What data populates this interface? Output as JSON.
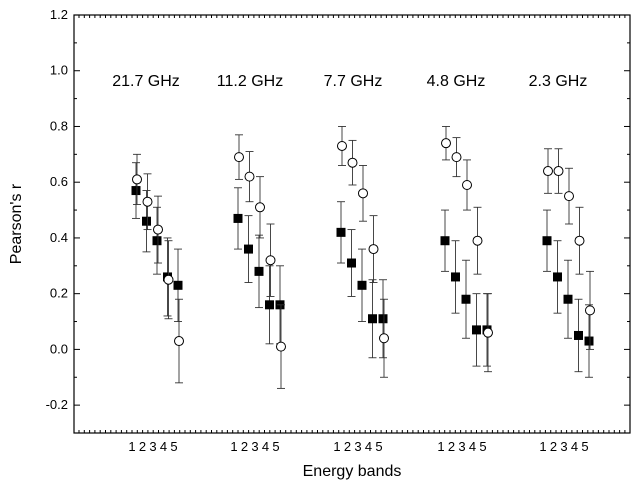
{
  "chart_data": {
    "type": "scatter",
    "xlabel": "Energy bands",
    "ylabel": "Pearson's r",
    "ylim": [
      -0.3,
      1.2
    ],
    "y_ticks": [
      "-0.2",
      "0.0",
      "0.2",
      "0.4",
      "0.6",
      "0.8",
      "1.0",
      "1.2"
    ],
    "band_labels": [
      "1",
      "2",
      "3",
      "4",
      "5"
    ],
    "groups": [
      {
        "label": "21.7 GHz",
        "filled_squares": [
          {
            "band": 1,
            "r": 0.57,
            "err": 0.1
          },
          {
            "band": 2,
            "r": 0.46,
            "err": 0.11
          },
          {
            "band": 3,
            "r": 0.39,
            "err": 0.12
          },
          {
            "band": 4,
            "r": 0.26,
            "err": 0.14
          },
          {
            "band": 5,
            "r": 0.23,
            "err": 0.13
          }
        ],
        "open_circles": [
          {
            "band": 1,
            "r": 0.61,
            "err": 0.09
          },
          {
            "band": 2,
            "r": 0.53,
            "err": 0.1
          },
          {
            "band": 3,
            "r": 0.43,
            "err": 0.12
          },
          {
            "band": 4,
            "r": 0.25,
            "err": 0.14
          },
          {
            "band": 5,
            "r": 0.03,
            "err": 0.15
          }
        ]
      },
      {
        "label": "11.2 GHz",
        "filled_squares": [
          {
            "band": 1,
            "r": 0.47,
            "err": 0.11
          },
          {
            "band": 2,
            "r": 0.36,
            "err": 0.12
          },
          {
            "band": 3,
            "r": 0.28,
            "err": 0.13
          },
          {
            "band": 4,
            "r": 0.16,
            "err": 0.14
          },
          {
            "band": 5,
            "r": 0.16,
            "err": 0.14
          }
        ],
        "open_circles": [
          {
            "band": 1,
            "r": 0.69,
            "err": 0.08
          },
          {
            "band": 2,
            "r": 0.62,
            "err": 0.09
          },
          {
            "band": 3,
            "r": 0.51,
            "err": 0.11
          },
          {
            "band": 4,
            "r": 0.32,
            "err": 0.13
          },
          {
            "band": 5,
            "r": 0.01,
            "err": 0.15
          }
        ]
      },
      {
        "label": "7.7 GHz",
        "filled_squares": [
          {
            "band": 1,
            "r": 0.42,
            "err": 0.11
          },
          {
            "band": 2,
            "r": 0.31,
            "err": 0.12
          },
          {
            "band": 3,
            "r": 0.23,
            "err": 0.13
          },
          {
            "band": 4,
            "r": 0.11,
            "err": 0.14
          },
          {
            "band": 5,
            "r": 0.11,
            "err": 0.14
          }
        ],
        "open_circles": [
          {
            "band": 1,
            "r": 0.73,
            "err": 0.07
          },
          {
            "band": 2,
            "r": 0.67,
            "err": 0.08
          },
          {
            "band": 3,
            "r": 0.56,
            "err": 0.1
          },
          {
            "band": 4,
            "r": 0.36,
            "err": 0.12
          },
          {
            "band": 5,
            "r": 0.04,
            "err": 0.14
          }
        ]
      },
      {
        "label": "4.8 GHz",
        "filled_squares": [
          {
            "band": 1,
            "r": 0.39,
            "err": 0.11
          },
          {
            "band": 2,
            "r": 0.26,
            "err": 0.13
          },
          {
            "band": 3,
            "r": 0.18,
            "err": 0.14
          },
          {
            "band": 4,
            "r": 0.07,
            "err": 0.13
          },
          {
            "band": 5,
            "r": 0.07,
            "err": 0.13
          }
        ],
        "open_circles": [
          {
            "band": 1,
            "r": 0.74,
            "err": 0.06
          },
          {
            "band": 2,
            "r": 0.69,
            "err": 0.07
          },
          {
            "band": 3,
            "r": 0.59,
            "err": 0.09
          },
          {
            "band": 4,
            "r": 0.39,
            "err": 0.12
          },
          {
            "band": 5,
            "r": 0.06,
            "err": 0.14
          }
        ]
      },
      {
        "label": "2.3 GHz",
        "filled_squares": [
          {
            "band": 1,
            "r": 0.39,
            "err": 0.11
          },
          {
            "band": 2,
            "r": 0.26,
            "err": 0.13
          },
          {
            "band": 3,
            "r": 0.18,
            "err": 0.14
          },
          {
            "band": 4,
            "r": 0.05,
            "err": 0.13
          },
          {
            "band": 5,
            "r": 0.03,
            "err": 0.13
          }
        ],
        "open_circles": [
          {
            "band": 1,
            "r": 0.64,
            "err": 0.08
          },
          {
            "band": 2,
            "r": 0.64,
            "err": 0.08
          },
          {
            "band": 3,
            "r": 0.55,
            "err": 0.1
          },
          {
            "band": 4,
            "r": 0.39,
            "err": 0.12
          },
          {
            "band": 5,
            "r": 0.14,
            "err": 0.14
          }
        ]
      }
    ]
  }
}
